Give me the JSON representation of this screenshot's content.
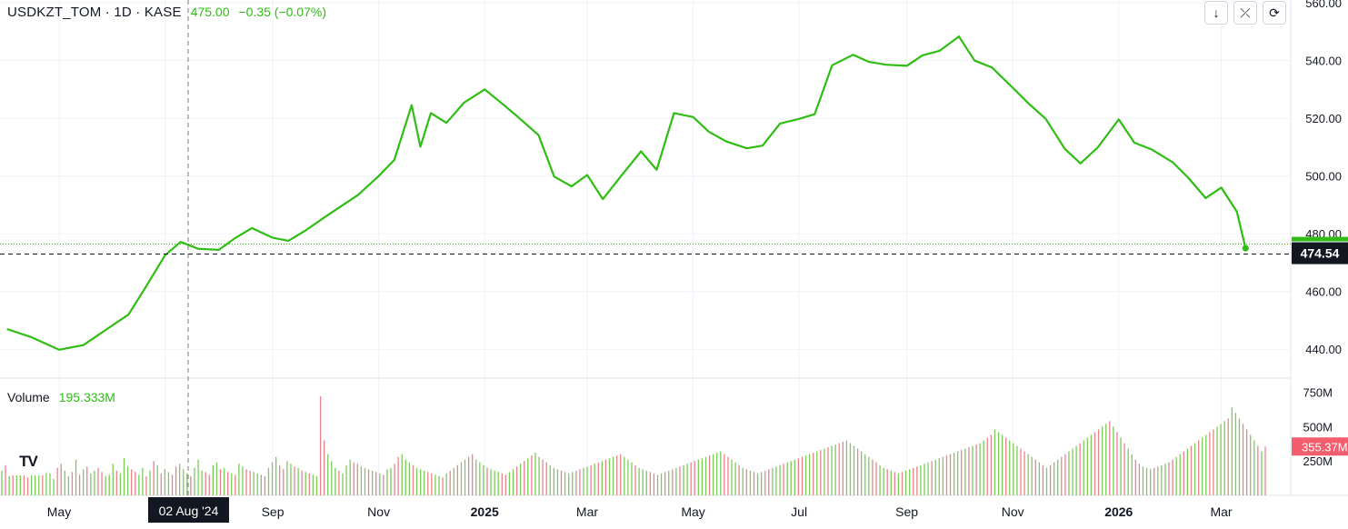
{
  "header": {
    "symbol": "USDKZT_TOM · 1D · KASE",
    "last": "475.00",
    "change": "−0.35 (−0.07%)"
  },
  "volume_label": "Volume",
  "volume_value": "195.333M",
  "logo_text": "TV",
  "buttons": [
    {
      "name": "down-arrow-icon",
      "glyph": "↓"
    },
    {
      "name": "collapse-icon",
      "glyph": "⤫"
    },
    {
      "name": "reset-icon",
      "glyph": "⟳"
    }
  ],
  "colors": {
    "line": "#2fbd14",
    "vol_up": "#7ccb5a",
    "vol_down": "#e8838e",
    "grid": "#f0f3fa",
    "price_tag": "#131722",
    "vol_tag": "#f25e6d"
  },
  "chart_data": [
    {
      "type": "line",
      "x_ticks": [
        "May",
        "Jul",
        "Sep",
        "Nov",
        "2025",
        "Mar",
        "May",
        "Jul",
        "Sep",
        "Nov",
        "2026",
        "Mar"
      ],
      "y_ticks": [
        "440.00",
        "460.00",
        "480.00",
        "500.00",
        "520.00",
        "540.00",
        "560.00"
      ],
      "ylim": [
        430,
        561
      ],
      "crosshair_label": "02 Aug '24",
      "last_price_label": "474.54",
      "series": [
        {
          "x": [
            "2024-04-01",
            "2024-04-15",
            "2024-05-01",
            "2024-05-15",
            "2024-06-01",
            "2024-06-10",
            "2024-06-20",
            "2024-07-01",
            "2024-07-10",
            "2024-07-20",
            "2024-08-01",
            "2024-08-10",
            "2024-08-20",
            "2024-09-01",
            "2024-09-10",
            "2024-09-20",
            "2024-10-01",
            "2024-10-10",
            "2024-10-20",
            "2024-11-01",
            "2024-11-10",
            "2024-11-20",
            "2024-11-25",
            "2024-12-01",
            "2024-12-10",
            "2024-12-20",
            "2025-01-01",
            "2025-01-10",
            "2025-01-20",
            "2025-02-01",
            "2025-02-10",
            "2025-02-20",
            "2025-03-01",
            "2025-03-10",
            "2025-03-20",
            "2025-04-01",
            "2025-04-10",
            "2025-04-20",
            "2025-05-01",
            "2025-05-10",
            "2025-05-20",
            "2025-06-01",
            "2025-06-10",
            "2025-06-20",
            "2025-07-01",
            "2025-07-10",
            "2025-07-20",
            "2025-08-01",
            "2025-08-10",
            "2025-08-20",
            "2025-09-01",
            "2025-09-10",
            "2025-09-20",
            "2025-10-01",
            "2025-10-10",
            "2025-10-20",
            "2025-11-01",
            "2025-11-10",
            "2025-11-20",
            "2025-12-01",
            "2025-12-10",
            "2025-12-20",
            "2026-01-01",
            "2026-01-10",
            "2026-01-20",
            "2026-02-01",
            "2026-02-10",
            "2026-02-20",
            "2026-03-01",
            "2026-03-10",
            "2026-03-15"
          ],
          "y": [
            447,
            444,
            440,
            442,
            448,
            452,
            462,
            472,
            477,
            475,
            475,
            478,
            482,
            479,
            477,
            481,
            486,
            490,
            493,
            500,
            506,
            524,
            510,
            522,
            519,
            525,
            530,
            526,
            520,
            514,
            500,
            497,
            500,
            492,
            500,
            508,
            502,
            522,
            521,
            515,
            512,
            510,
            510,
            518,
            520,
            522,
            538,
            542,
            540,
            538,
            538,
            542,
            544,
            548,
            540,
            538,
            530,
            525,
            520,
            510,
            504,
            510,
            520,
            511,
            509,
            505,
            500,
            492,
            496,
            488,
            475
          ]
        }
      ]
    },
    {
      "type": "bar",
      "title": "Volume",
      "y_ticks": [
        "250M",
        "500M",
        "750M"
      ],
      "ylim": [
        0,
        800
      ],
      "last_volume_label": "355.37M",
      "values": [
        180,
        220,
        140,
        200,
        160,
        250,
        170,
        130,
        190,
        150,
        210,
        240,
        170,
        160,
        120,
        200,
        230,
        180,
        140,
        170,
        260,
        150,
        190,
        210,
        160,
        180,
        200,
        170,
        140,
        150,
        230,
        180,
        160,
        270,
        210,
        190,
        170,
        150,
        200,
        140,
        180,
        250,
        220,
        160,
        190,
        170,
        150,
        210,
        230,
        190,
        160,
        140,
        200,
        260,
        180,
        170,
        150,
        220,
        240,
        190,
        200,
        170,
        160,
        150,
        230,
        210,
        190,
        180,
        170,
        160,
        150,
        140,
        200,
        240,
        280,
        220,
        190,
        250,
        230,
        210,
        200,
        180,
        170,
        160,
        150,
        140,
        720,
        400,
        300,
        250,
        200,
        180,
        160,
        220,
        260,
        240,
        230,
        210,
        200,
        190,
        180,
        170,
        160,
        150,
        190,
        200,
        230,
        280,
        300,
        260,
        240,
        220,
        200,
        190,
        180,
        170,
        160,
        150,
        140,
        130,
        160,
        180,
        200,
        220,
        240,
        260,
        280,
        300,
        260,
        240,
        220,
        200,
        190,
        180,
        170,
        160,
        150,
        170,
        190,
        210,
        230,
        250,
        270,
        290,
        310,
        280,
        260,
        240,
        220,
        200,
        190,
        180,
        170,
        160,
        170,
        180,
        190,
        200,
        210,
        220,
        230,
        240,
        250,
        260,
        270,
        280,
        290,
        300,
        280,
        260,
        240,
        220,
        200,
        190,
        180,
        170,
        160,
        150,
        160,
        170,
        180,
        190,
        200,
        210,
        220,
        230,
        240,
        250,
        260,
        270,
        280,
        290,
        300,
        310,
        320,
        300,
        280,
        260,
        240,
        220,
        200,
        190,
        180,
        170,
        160,
        170,
        180,
        190,
        200,
        210,
        220,
        230,
        240,
        250,
        260,
        270,
        280,
        290,
        300,
        310,
        320,
        330,
        340,
        350,
        360,
        370,
        380,
        390,
        400,
        380,
        360,
        340,
        320,
        300,
        280,
        260,
        240,
        220,
        200,
        190,
        180,
        170,
        160,
        170,
        180,
        190,
        200,
        210,
        220,
        230,
        240,
        250,
        260,
        270,
        280,
        290,
        300,
        310,
        320,
        330,
        340,
        350,
        360,
        370,
        380,
        400,
        420,
        440,
        480,
        460,
        440,
        420,
        400,
        380,
        360,
        340,
        320,
        300,
        280,
        260,
        240,
        220,
        200,
        220,
        240,
        260,
        280,
        300,
        320,
        340,
        360,
        380,
        400,
        420,
        440,
        460,
        480,
        500,
        520,
        540,
        500,
        460,
        420,
        380,
        340,
        300,
        260,
        230,
        210,
        200,
        190,
        200,
        210,
        220,
        230,
        240,
        260,
        280,
        300,
        320,
        340,
        360,
        380,
        400,
        420,
        440,
        460,
        480,
        500,
        520,
        540,
        560,
        640,
        600,
        560,
        520,
        480,
        440,
        400,
        360,
        320,
        355
      ],
      "up_down": "mixed"
    }
  ]
}
